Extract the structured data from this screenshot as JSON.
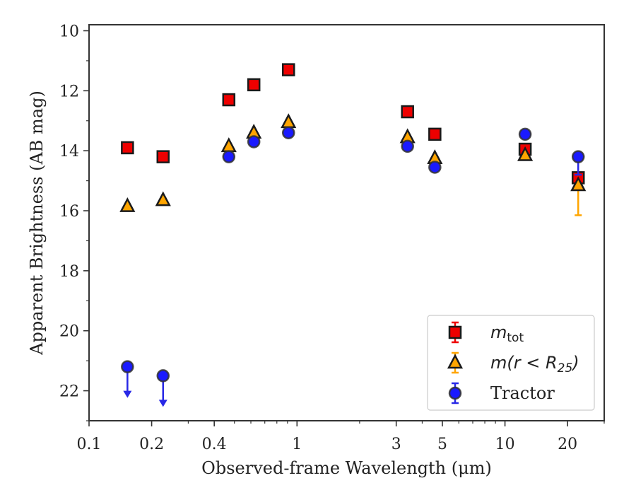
{
  "chart_data": {
    "type": "scatter",
    "xlabel": "Observed-frame Wavelength (μm)",
    "ylabel": "Apparent Brightness (AB mag)",
    "x_scale": "log",
    "xlim": [
      0.1,
      30
    ],
    "ylim": [
      23,
      9.8
    ],
    "y_inverted": true,
    "x_ticks": [
      {
        "value": 0.1,
        "label": "0.1"
      },
      {
        "value": 0.2,
        "label": "0.2"
      },
      {
        "value": 0.4,
        "label": "0.4"
      },
      {
        "value": 1,
        "label": "1"
      },
      {
        "value": 3,
        "label": "3"
      },
      {
        "value": 5,
        "label": "5"
      },
      {
        "value": 10,
        "label": "10"
      },
      {
        "value": 20,
        "label": "20"
      }
    ],
    "y_ticks": [
      {
        "value": 10,
        "label": "10"
      },
      {
        "value": 12,
        "label": "12"
      },
      {
        "value": 14,
        "label": "14"
      },
      {
        "value": 16,
        "label": "16"
      },
      {
        "value": 18,
        "label": "18"
      },
      {
        "value": 20,
        "label": "20"
      },
      {
        "value": 22,
        "label": "22"
      }
    ],
    "grid": false,
    "legend_position": "lower-right",
    "series": [
      {
        "name": "m_tot",
        "legend_label": {
          "base": "m",
          "sub": "tot"
        },
        "marker": "square",
        "color": "#ee0000",
        "errcolor": "#ee0000",
        "points": [
          {
            "x": 0.153,
            "y": 13.9
          },
          {
            "x": 0.227,
            "y": 14.2
          },
          {
            "x": 0.47,
            "y": 12.3
          },
          {
            "x": 0.62,
            "y": 11.8
          },
          {
            "x": 0.91,
            "y": 11.3
          },
          {
            "x": 3.4,
            "y": 12.7
          },
          {
            "x": 4.6,
            "y": 13.45
          },
          {
            "x": 12.5,
            "y": 13.95
          },
          {
            "x": 22.5,
            "y": 14.9
          }
        ]
      },
      {
        "name": "m(r < R25)",
        "legend_label": {
          "base": "m(r < R",
          "sub": "25",
          "tail": ")"
        },
        "marker": "triangle",
        "color": "#ffa500",
        "errcolor": "#ffa500",
        "points": [
          {
            "x": 0.153,
            "y": 15.85
          },
          {
            "x": 0.227,
            "y": 15.65
          },
          {
            "x": 0.47,
            "y": 13.85
          },
          {
            "x": 0.62,
            "y": 13.4
          },
          {
            "x": 0.91,
            "y": 13.05
          },
          {
            "x": 3.4,
            "y": 13.55
          },
          {
            "x": 4.6,
            "y": 14.25
          },
          {
            "x": 12.5,
            "y": 14.15
          },
          {
            "x": 22.5,
            "y": 15.15,
            "err_low": 1.0
          }
        ]
      },
      {
        "name": "Tractor",
        "legend_label": {
          "base": "Tractor"
        },
        "marker": "circle",
        "color": "#1a1aff",
        "errcolor": "#2828e6",
        "points": [
          {
            "x": 0.153,
            "y": 21.2,
            "upper_limit": true
          },
          {
            "x": 0.227,
            "y": 21.5,
            "upper_limit": true
          },
          {
            "x": 0.47,
            "y": 14.2
          },
          {
            "x": 0.62,
            "y": 13.7
          },
          {
            "x": 0.91,
            "y": 13.4
          },
          {
            "x": 3.4,
            "y": 13.85
          },
          {
            "x": 4.6,
            "y": 14.55
          },
          {
            "x": 12.5,
            "y": 13.45
          },
          {
            "x": 22.5,
            "y": 14.2,
            "err_low": 0.6
          }
        ]
      }
    ]
  }
}
